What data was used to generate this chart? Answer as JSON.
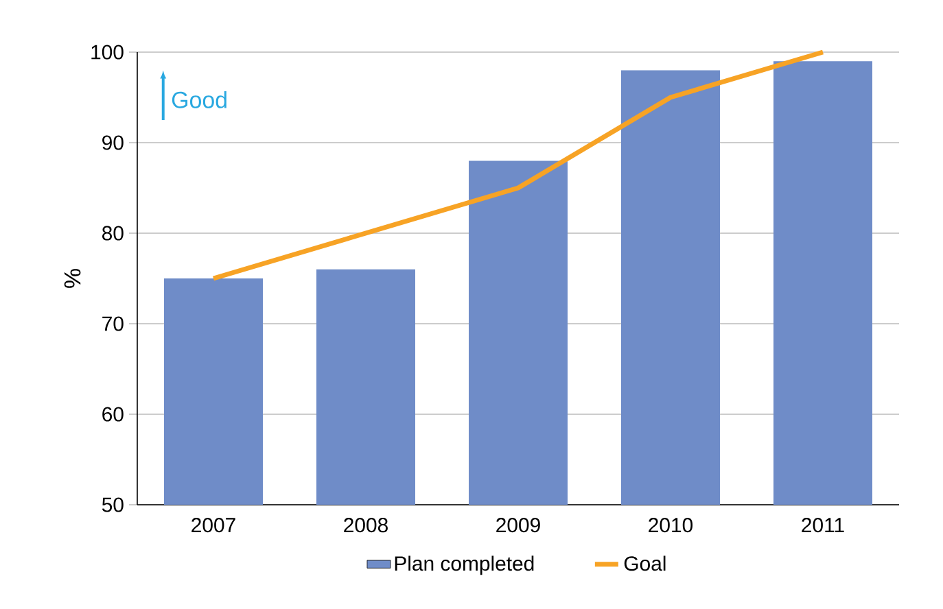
{
  "chart_data": {
    "type": "bar",
    "ylabel": "%",
    "categories": [
      "2007",
      "2008",
      "2009",
      "2010",
      "2011"
    ],
    "series": [
      {
        "name": "Plan completed",
        "color": "#6f8cc8",
        "values": [
          75,
          76,
          88,
          98,
          99
        ]
      },
      {
        "name": "Goal",
        "type": "line",
        "color": "#f7a325",
        "values": [
          75,
          80,
          85,
          95,
          100
        ]
      }
    ],
    "ylim": [
      50,
      100
    ],
    "yticks": [
      50,
      60,
      70,
      80,
      90,
      100
    ],
    "grid": "y",
    "legend": "bottom",
    "annotations": [
      "Good"
    ]
  }
}
